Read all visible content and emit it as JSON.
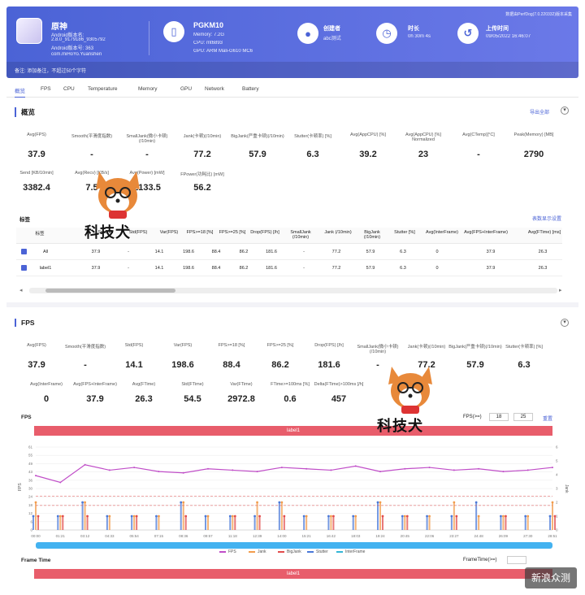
{
  "header": {
    "app_name": "原神",
    "app_sub1": "Android版本名:",
    "app_sub2": "2.8.0_9179186_9305792",
    "app_sub3": "Android版本号: 363",
    "app_sub4": "com.miHoYo.Yuanshen",
    "device": "PGKM10",
    "device_mem": "Memory: 7.2G",
    "device_cpu": "CPU: mt6893",
    "device_gpu": "GPU: ARM Mali-G610 MC6",
    "creator_label": "创建者",
    "creator_value": "abc测试",
    "duration_label": "时长",
    "duration_value": "0h 30m 4s",
    "upload_label": "上传时间",
    "upload_value": "09/05/2022 16:46:07",
    "version_note": "数据由PerfDog(7.0.220332)版本采集",
    "remark": "备注: 添加备注，不超过50个字符"
  },
  "tabs": [
    "概览",
    "FPS",
    "CPU",
    "Temperature",
    "Memory",
    "GPU",
    "Network",
    "Battery"
  ],
  "overview": {
    "title": "概览",
    "export_link": "导出全部",
    "row1": [
      {
        "label": "Avg(FPS)",
        "value": "37.9"
      },
      {
        "label": "Smooth(平滑度指数)",
        "value": "-"
      },
      {
        "label": "SmallJank(微小卡顿)(/10min)",
        "value": "-"
      },
      {
        "label": "Jank(卡顿)(/10min)",
        "value": "77.2"
      },
      {
        "label": "BigJank(严重卡顿)(/10min)",
        "value": "57.9"
      },
      {
        "label": "Stutter(卡顿率) [%]",
        "value": "6.3"
      },
      {
        "label": "Avg(AppCPU) [%]",
        "value": "39.2"
      },
      {
        "label": "Avg(AppCPU) [%] Normalized",
        "value": "23"
      },
      {
        "label": "Avg(CTemp)[°C]",
        "value": "-"
      },
      {
        "label": "Peak(Memory) [MB]",
        "value": "2790"
      }
    ],
    "row2": [
      {
        "label": "Send [KB/10min]",
        "value": "3382.4"
      },
      {
        "label": "Avg(Recv) [KB/s]",
        "value": "7.5"
      },
      {
        "label": "Avg(Power) [mW]",
        "value": "2133.5"
      },
      {
        "label": "FPower(功耗比) [mW]",
        "value": "56.2"
      }
    ]
  },
  "labels_table": {
    "title": "标签",
    "settings_link": "表数显示设置",
    "columns": [
      "标签",
      "Smooth",
      "Std(FPS)",
      "Var(FPS)",
      "FPS>=18 [%]",
      "FPS>=25 [%]",
      "Drop(FPS) [/h]",
      "SmallJank (/10min)",
      "Jank (/10min)",
      "BigJank (/10min)",
      "Stutter [%]",
      "Avg(InterFrame)",
      "Avg(FPS+InterFrame)",
      "Avg(FTime) [ms]"
    ],
    "rows": [
      {
        "name": "All",
        "fps": "37.9",
        "smooth": "-",
        "std": "14.1",
        "var": "198.6",
        "f18": "88.4",
        "f25": "86.2",
        "drop": "181.6",
        "small": "-",
        "jank": "77.2",
        "big": "57.9",
        "stutter": "6.3",
        "inter": "0",
        "fpsinter": "37.9",
        "ftime": "26.3"
      },
      {
        "name": "label1",
        "fps": "37.9",
        "smooth": "-",
        "std": "14.1",
        "var": "198.6",
        "f18": "88.4",
        "f25": "86.2",
        "drop": "181.6",
        "small": "-",
        "jank": "77.2",
        "big": "57.9",
        "stutter": "6.3",
        "inter": "0",
        "fpsinter": "37.9",
        "ftime": "26.3"
      }
    ]
  },
  "fps_section": {
    "title": "FPS",
    "row1": [
      {
        "label": "Avg(FPS)",
        "value": "37.9"
      },
      {
        "label": "Smooth(平滑度指数)",
        "value": "-"
      },
      {
        "label": "Std(FPS)",
        "value": "14.1"
      },
      {
        "label": "Var(FPS)",
        "value": "198.6"
      },
      {
        "label": "FPS>=18 [%]",
        "value": "88.4"
      },
      {
        "label": "FPS>=25 [%]",
        "value": "86.2"
      },
      {
        "label": "Drop(FPS) [/h]",
        "value": "181.6"
      },
      {
        "label": "SmallJank(微小卡顿)(/10min)",
        "value": "-"
      },
      {
        "label": "Jank(卡顿)(/10min)",
        "value": "77.2"
      },
      {
        "label": "BigJank(严重卡顿)(/10min)",
        "value": "57.9"
      },
      {
        "label": "Stutter(卡顿率) [%]",
        "value": "6.3"
      }
    ],
    "row2": [
      {
        "label": "Avg(InterFrame)",
        "value": "0"
      },
      {
        "label": "Avg(FPS+InterFrame)",
        "value": "37.9"
      },
      {
        "label": "Avg(FTime)",
        "value": "26.3"
      },
      {
        "label": "Std(FTime)",
        "value": "54.5"
      },
      {
        "label": "Var(FTime)",
        "value": "2972.8"
      },
      {
        "label": "FTime>=100ms [%]",
        "value": "0.6"
      },
      {
        "label": "Delta(FTime)>100ms [/h]",
        "value": "457"
      }
    ]
  },
  "fps_chart_panel": {
    "chart_title": "FPS",
    "threshold_label": "FPS(>=)",
    "threshold1": "18",
    "threshold2": "25",
    "reset": "重置",
    "label_bar": "label1",
    "y_axis_left": "FPS",
    "y_axis_right": "Jank",
    "frame_title": "Frame Time",
    "frame_threshold": "FrameTime(>=)",
    "frame_label_bar": "label1"
  },
  "chart_data": {
    "type": "line",
    "x": [
      "00:00",
      "01:21",
      "02:42",
      "04:03",
      "05:24",
      "06:45",
      "08:06",
      "09:27",
      "10:48",
      "12:09",
      "13:30",
      "14:51",
      "16:12",
      "17:33",
      "18:54",
      "20:15",
      "21:36",
      "22:57",
      "24:18",
      "25:39",
      "27:00",
      "28:21"
    ],
    "x_tick_labels": [
      "00:00",
      "01:21",
      "03:12",
      "04:33",
      "05:54",
      "07:15",
      "08:36",
      "09:57",
      "11:18",
      "12:39",
      "14:00",
      "15:21",
      "16:42",
      "18:03",
      "19:24",
      "20:45",
      "22:06",
      "23:27",
      "24:48",
      "26:09",
      "27:30",
      "28:51"
    ],
    "ylim": [
      0,
      61
    ],
    "y_ticks": [
      "0",
      "6",
      "12",
      "18",
      "24",
      "30",
      "36",
      "43",
      "49",
      "55",
      "61"
    ],
    "y2_ticks": [
      "0",
      "1",
      "2",
      "3",
      "4",
      "5",
      "6"
    ],
    "series": [
      {
        "name": "FPS",
        "values": [
          40,
          35,
          48,
          44,
          46,
          43,
          42,
          45,
          44,
          43,
          46,
          45,
          44,
          47,
          43,
          45,
          46,
          44,
          45,
          43,
          44,
          46
        ]
      },
      {
        "name": "Jank",
        "values": [
          2,
          1,
          2,
          1,
          1,
          1,
          2,
          1,
          1,
          2,
          2,
          1,
          1,
          1,
          2,
          1,
          1,
          2,
          1,
          1,
          1,
          2
        ]
      },
      {
        "name": "BigJank",
        "values": [
          1,
          1,
          1,
          0,
          1,
          0,
          1,
          0,
          1,
          1,
          1,
          0,
          1,
          0,
          1,
          1,
          0,
          1,
          0,
          1,
          0,
          1
        ]
      },
      {
        "name": "Stutter",
        "values": [
          1,
          1,
          2,
          1,
          1,
          1,
          2,
          1,
          1,
          1,
          2,
          1,
          1,
          1,
          2,
          1,
          1,
          1,
          2,
          1,
          1,
          1
        ]
      },
      {
        "name": "InterFrame",
        "values": [
          0,
          0,
          0,
          0,
          0,
          0,
          0,
          0,
          0,
          0,
          0,
          0,
          0,
          0,
          0,
          0,
          0,
          0,
          0,
          0,
          0,
          0
        ]
      }
    ],
    "colors": {
      "FPS": "#c04ec8",
      "Jank": "#f29c4c",
      "BigJank": "#e24c4c",
      "Stutter": "#4a78d8",
      "InterFrame": "#34b6d6"
    },
    "legend_position": "bottom"
  },
  "watermark": {
    "text": "科技犬",
    "corner_text": "新浪众测"
  }
}
